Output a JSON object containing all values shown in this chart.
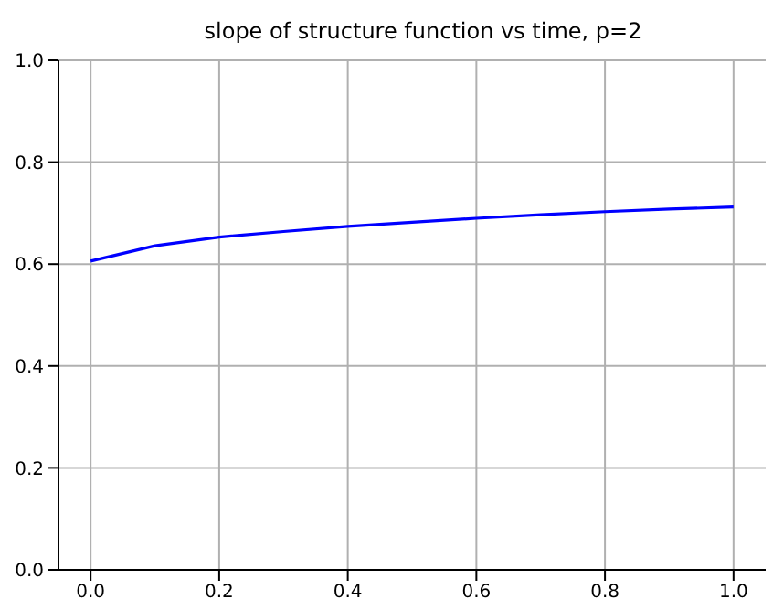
{
  "chart_data": {
    "type": "line",
    "title": "slope of structure function vs time, p=2",
    "x": [
      0,
      0.1,
      0.2,
      0.3,
      0.4,
      0.5,
      0.6,
      0.7,
      0.8,
      0.9,
      1.0
    ],
    "series": [
      {
        "color": "#0000ff",
        "values": [
          0.606,
          0.636,
          0.653,
          0.664,
          0.674,
          0.682,
          0.69,
          0.697,
          0.703,
          0.708,
          0.712
        ]
      }
    ],
    "xlim": [
      -0.05,
      1.05
    ],
    "xticks": [
      {
        "value": 0,
        "label": "0.0"
      },
      0.2,
      0.4,
      0.6,
      0.8,
      {
        "value": 1,
        "label": "1.0"
      }
    ],
    "ylim": [
      0,
      1
    ],
    "yticks": [
      {
        "value": 0,
        "label": "0.0"
      },
      0.2,
      0.4,
      0.6,
      0.8,
      {
        "value": 1,
        "label": "1.0"
      }
    ],
    "grid": true,
    "marker": "none",
    "line_style": "solid"
  }
}
